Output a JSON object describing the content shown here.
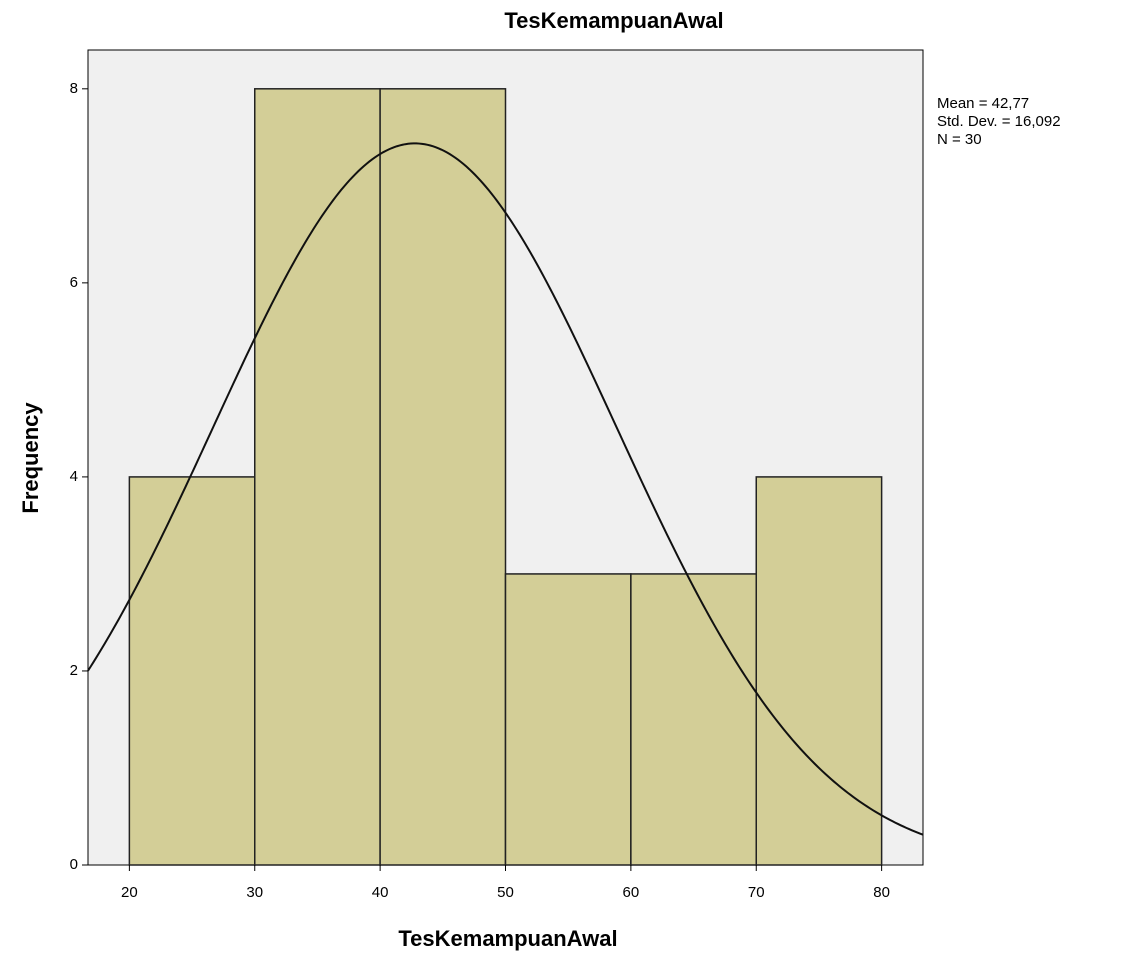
{
  "chart_data": {
    "type": "histogram",
    "title": "TesKemampuanAwal",
    "x_label": "TesKemampuanAwal",
    "y_label": "Frequency",
    "bins": [
      20,
      30,
      40,
      50,
      60,
      70,
      80
    ],
    "values": [
      4,
      8,
      8,
      3,
      3,
      4
    ],
    "color": "#d3ce97",
    "xlim": [
      16.7,
      83.3
    ],
    "ylim": [
      0,
      8.4
    ],
    "xticks": [
      20,
      30,
      40,
      50,
      60,
      70,
      80
    ],
    "yticks": [
      0,
      2,
      4,
      6,
      8
    ],
    "normal_curve": {
      "mean": 42.77,
      "sd": 16.092,
      "n": 30,
      "labels": [
        "Mean = 42,77",
        "Std. Dev. = 16,092",
        "N = 30"
      ]
    }
  }
}
